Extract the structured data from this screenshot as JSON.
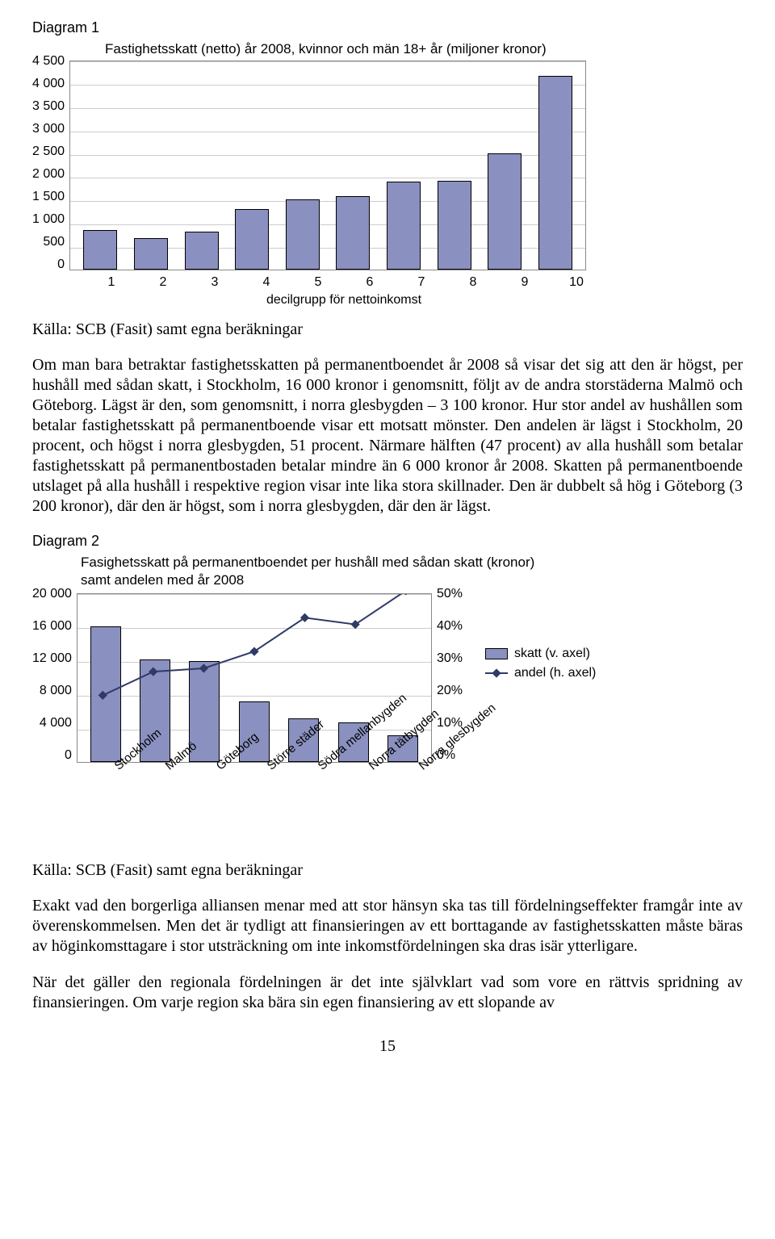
{
  "diagram1": {
    "title": "Diagram 1",
    "subtitle": "Fastighetsskatt (netto) år 2008, kvinnor och män 18+ år (miljoner kronor)",
    "type": "bar",
    "y_ticks": [
      "4 500",
      "4 000",
      "3 500",
      "3 000",
      "2 500",
      "2 000",
      "1 500",
      "1 000",
      "500",
      "0"
    ],
    "ymax": 4500,
    "categories": [
      "1",
      "2",
      "3",
      "4",
      "5",
      "6",
      "7",
      "8",
      "9",
      "10"
    ],
    "values": [
      850,
      670,
      820,
      1300,
      1510,
      1580,
      1880,
      1900,
      2500,
      4150
    ],
    "bar_color": "#8a90bf",
    "xlabel": "decilgrupp för nettoinkomst",
    "source": "Källa: SCB (Fasit) samt egna beräkningar"
  },
  "paragraph1": "Om man bara betraktar fastighetsskatten på permanentboendet år 2008 så visar det sig att den är högst, per hushåll med sådan skatt, i Stockholm, 16 000 kronor i genomsnitt, följt av de andra storstäderna Malmö och Göteborg. Lägst är den, som genomsnitt, i norra glesbygden – 3 100 kronor. Hur stor andel av hushållen som betalar fastighetsskatt på permanentboende visar ett motsatt mönster. Den andelen är lägst i Stockholm, 20 procent, och högst i norra glesbygden, 51 procent. Närmare hälften (47 procent) av alla hushåll som betalar fastighetsskatt på permanentbostaden betalar mindre än 6 000 kronor år 2008. Skatten på permanentboende utslaget på alla hushåll i respektive region visar inte lika stora skillnader. Den är dubbelt så hög i Göteborg (3 200 kronor), där den är högst, som i norra glesbygden, där den är lägst.",
  "diagram2": {
    "title": "Diagram 2",
    "subtitle": "Fasighetsskatt på permanentboendet per hushåll med sådan skatt (kronor)",
    "subline": "samt andelen med år 2008",
    "type": "bar+line",
    "yL_ticks": [
      "20 000",
      "16 000",
      "12 000",
      "8 000",
      "4 000",
      "0"
    ],
    "yL_max": 20000,
    "yR_ticks": [
      "50%",
      "40%",
      "30%",
      "20%",
      "10%",
      "0%"
    ],
    "yR_max": 50,
    "categories": [
      "Stockholm",
      "Malmö",
      "Göteborg",
      "Större städer",
      "Södra mellanbygden",
      "Norra tätbygden",
      "Norra glesbygden"
    ],
    "bar_values": [
      16000,
      12100,
      11900,
      7100,
      5100,
      4700,
      3100
    ],
    "line_values": [
      20,
      27,
      28,
      33,
      43,
      41,
      51
    ],
    "bar_color": "#8a90bf",
    "line_color": "#2f3a66",
    "legend_bar": "skatt (v. axel)",
    "legend_line": "andel (h. axel)",
    "source": "Källa: SCB (Fasit) samt egna beräkningar"
  },
  "paragraph2": "Exakt vad den borgerliga alliansen menar med att stor hänsyn ska tas till fördelningseffekter framgår inte av överenskommelsen. Men det är tydligt att finansieringen av ett borttagande av fastighetsskatten måste bäras av höginkomsttagare i stor utsträckning om inte inkomstfördelningen ska dras isär ytterligare.",
  "paragraph3": "När det gäller den regionala fördelningen är det inte självklart vad som vore en rättvis spridning av finansieringen. Om varje region ska bära sin egen finansiering av ett slopande av",
  "page_number": "15"
}
